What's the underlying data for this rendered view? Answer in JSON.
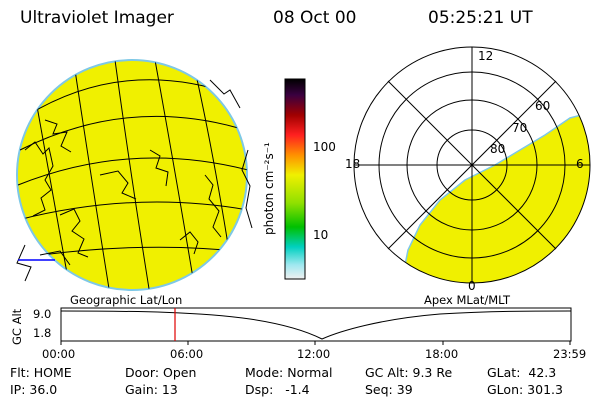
{
  "header": {
    "instrument": "Ultraviolet Imager",
    "date": "08 Oct 00",
    "time": "05:25:21 UT"
  },
  "colorbar": {
    "unit_label": "photon cm⁻²s⁻¹",
    "tick_100": "100",
    "tick_10": "10"
  },
  "geo_panel": {
    "label": "Geographic Lat/Lon"
  },
  "polar_panel": {
    "label": "Apex MLat/MLT",
    "mlt_12": "12",
    "mlt_18": "18",
    "mlt_6": "6",
    "mlt_0": "0",
    "mlat_60": "60",
    "mlat_70": "70",
    "mlat_80": "80"
  },
  "altitude_plot": {
    "ylabel": "GC Alt",
    "ytick_top": "9.0",
    "ytick_bottom": "1.8",
    "xticks": [
      "00:00",
      "06:00",
      "12:00",
      "18:00",
      "23:59"
    ],
    "current_time_marker": "05:25"
  },
  "status": {
    "flt": "Flt: HOME",
    "ip": "IP: 36.0",
    "door": "Door: Open",
    "gain": "Gain: 13",
    "mode": "Mode: Normal",
    "dsp": "Dsp:   -1.4",
    "gcalt": "GC Alt: 9.3 Re",
    "seq": "Seq: 39",
    "glat": "GLat:  42.3",
    "glon": "GLon: 301.3"
  },
  "colors": {
    "aurora_fill": "#f0f000",
    "limb": "#7ec8e6",
    "time_marker": "#e00000"
  }
}
